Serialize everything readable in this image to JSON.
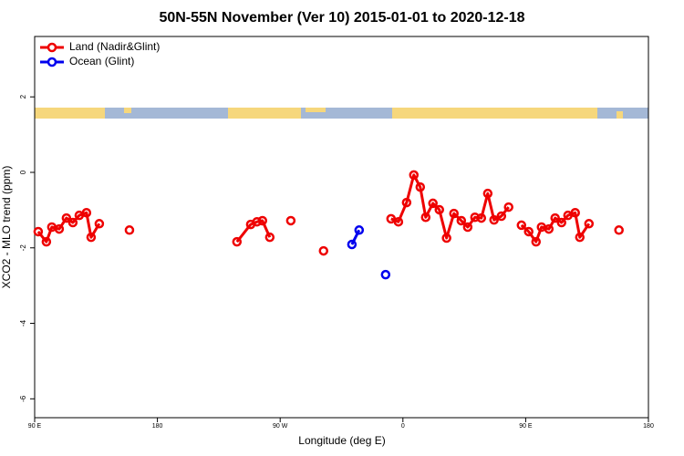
{
  "chart_data": {
    "type": "line",
    "title": "50N-55N November (Ver 10)   2015-01-01 to 2020-12-18",
    "xlabel": "Longitude (deg E)",
    "ylabel": "XCO2 - MLO trend (ppm)",
    "xlim": [
      -270,
      180
    ],
    "ylim": [
      -6.5,
      3.6
    ],
    "xticks": [
      {
        "value": -270,
        "label": "90 E"
      },
      {
        "value": -180,
        "label": "180"
      },
      {
        "value": -90,
        "label": "90 W"
      },
      0,
      {
        "value": 90,
        "label": "90 E"
      },
      180
    ],
    "yticks": [
      2,
      0,
      -2,
      -4,
      -6
    ],
    "legend": "topleft",
    "series": [
      {
        "name": "Land (Nadir&Glint)",
        "color": "#ee0000",
        "x": [
          -267.4,
          -261.4,
          -257.4,
          -252,
          -246.7,
          -242,
          -237.3,
          -232,
          -228.6,
          -222.6,
          null,
          -200.5,
          null,
          -121.7,
          -111.6,
          -107,
          -103,
          -97.6,
          null,
          -82.2,
          null,
          -58.2,
          null,
          -8.7,
          -3.3,
          2.7,
          8,
          12.7,
          16.7,
          22,
          26.7,
          32,
          37.4,
          42.8,
          47.5,
          52.8,
          57.5,
          62.2,
          66.8,
          72.2,
          77.5,
          null,
          86.9,
          92.2,
          97.6,
          101.6,
          107,
          111.6,
          116.3,
          121,
          126.3,
          129.7,
          136.4,
          null,
          158.4
        ],
        "values": [
          -1.57,
          -1.84,
          -1.45,
          -1.5,
          -1.21,
          -1.33,
          -1.14,
          -1.07,
          -1.72,
          -1.36,
          null,
          -1.53,
          null,
          -1.84,
          -1.38,
          -1.31,
          -1.28,
          -1.72,
          null,
          -1.28,
          null,
          -2.08,
          null,
          -1.23,
          -1.31,
          -0.8,
          -0.07,
          -0.39,
          -1.19,
          -0.82,
          -0.99,
          -1.74,
          -1.09,
          -1.28,
          -1.45,
          -1.19,
          -1.21,
          -0.56,
          -1.26,
          -1.16,
          -0.92,
          null,
          -1.4,
          -1.57,
          -1.84,
          -1.45,
          -1.5,
          -1.21,
          -1.33,
          -1.14,
          -1.07,
          -1.72,
          -1.36,
          null,
          -1.53
        ]
      },
      {
        "name": "Ocean (Glint)",
        "color": "#0000ee",
        "x": [
          -37.4,
          -32.1,
          null,
          -12.7
        ],
        "values": [
          -1.91,
          -1.53,
          null,
          -2.71
        ]
      }
    ]
  }
}
